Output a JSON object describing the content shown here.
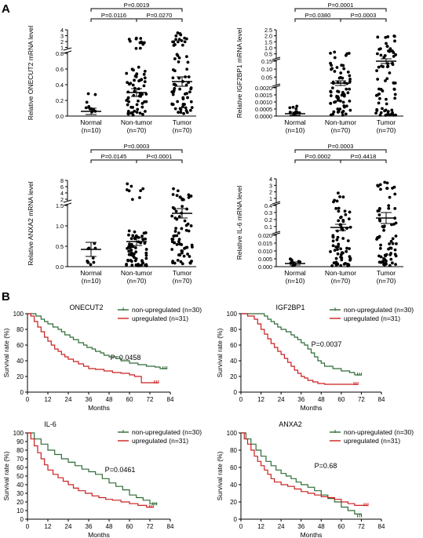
{
  "panels": {
    "a": "A",
    "b": "B"
  },
  "chart_data": [
    {
      "id": "oncecut2_expr",
      "type": "scatter",
      "ylabel": "Relative ONECUT2 mRNA level",
      "categories": [
        "Normal",
        "Non-tumor",
        "Tumor"
      ],
      "counts": [
        "(n=10)",
        "(n=70)",
        "(n=70)"
      ],
      "yticks_top": [
        "0",
        "1",
        "2",
        "3",
        "4"
      ],
      "yticks_bottom": [
        "0.0",
        "0.2",
        "0.4",
        "0.6",
        "0.8"
      ],
      "means": [
        0.06,
        0.3,
        0.44
      ],
      "pvalues": [
        {
          "pair": [
            0,
            1
          ],
          "level": 1,
          "text": "P=0.0116"
        },
        {
          "pair": [
            1,
            2
          ],
          "level": 1,
          "text": "P=0.0270"
        },
        {
          "pair": [
            0,
            2
          ],
          "level": 2,
          "text": "P=0.0019"
        }
      ]
    },
    {
      "id": "igf2bp1_expr",
      "type": "scatter",
      "ylabel": "Relative IGF2BP1 mRNA level",
      "categories": [
        "Normal",
        "Non-tumor",
        "Tumor"
      ],
      "counts": [
        "(n=10)",
        "(n=70)",
        "(n=70)"
      ],
      "yticks_top": [
        "0.5",
        "1.0",
        "1.5",
        "2.0",
        "2.5"
      ],
      "yticks_mid": [
        "0.05",
        "0.10",
        "0.15"
      ],
      "yticks_bottom": [
        "0.0000",
        "0.0005",
        "0.0010",
        "0.0015",
        "0.0020"
      ],
      "means": [
        0.0003,
        0.06,
        0.3
      ],
      "pvalues": [
        {
          "pair": [
            0,
            1
          ],
          "level": 1,
          "text": "P=0.0380"
        },
        {
          "pair": [
            1,
            2
          ],
          "level": 1,
          "text": "P=0.0003"
        },
        {
          "pair": [
            0,
            2
          ],
          "level": 2,
          "text": "P=0.0001"
        }
      ]
    },
    {
      "id": "anxa2_expr",
      "type": "scatter",
      "ylabel": "Relative ANXA2 mRNA level",
      "categories": [
        "Normal",
        "Non-tumor",
        "Tumor"
      ],
      "counts": [
        "(n=10)",
        "(n=70)",
        "(n=70)"
      ],
      "yticks_top": [
        "2",
        "4",
        "6",
        "8"
      ],
      "yticks_bottom": [
        "0.0",
        "0.5",
        "1.0",
        "1.5"
      ],
      "means": [
        0.42,
        0.62,
        1.33
      ],
      "pvalues": [
        {
          "pair": [
            0,
            1
          ],
          "level": 1,
          "text": "P=0.0145"
        },
        {
          "pair": [
            1,
            2
          ],
          "level": 1,
          "text": "P<0.0001"
        },
        {
          "pair": [
            0,
            2
          ],
          "level": 2,
          "text": "P=0.0003"
        }
      ]
    },
    {
      "id": "il6_expr",
      "type": "scatter",
      "ylabel": "Relative IL-6 mRNA level",
      "categories": [
        "Normal",
        "Non-tumor",
        "Tumor"
      ],
      "counts": [
        "(n=10)",
        "(n=70)",
        "(n=70)"
      ],
      "yticks_top": [
        "1",
        "2",
        "3",
        "4"
      ],
      "yticks_mid": [
        "0.1",
        "0.2",
        "0.3",
        "0.4"
      ],
      "yticks_bottom": [
        "0.000",
        "0.005",
        "0.010",
        "0.015",
        "0.020"
      ],
      "means": [
        0.003,
        0.13,
        0.23
      ],
      "pvalues": [
        {
          "pair": [
            0,
            1
          ],
          "level": 1,
          "text": "P=0.0002"
        },
        {
          "pair": [
            1,
            2
          ],
          "level": 1,
          "text": "P=0.4418"
        },
        {
          "pair": [
            0,
            2
          ],
          "level": 2,
          "text": "P=0.0003"
        }
      ]
    },
    {
      "id": "km_oncecut2",
      "type": "line",
      "title": "ONECUT2",
      "xlabel": "Months",
      "ylabel": "Survival rate (%)",
      "xticks": [
        0,
        12,
        24,
        36,
        48,
        60,
        72,
        84
      ],
      "yticks": [
        0,
        20,
        40,
        60,
        80,
        100
      ],
      "xlim": [
        0,
        84
      ],
      "ylim": [
        0,
        100
      ],
      "pvalue": "P=0.0458",
      "series": [
        {
          "name": "non-upregulated (n=30)",
          "color": "#2e6b36",
          "x": [
            0,
            5,
            8,
            10,
            12,
            15,
            18,
            20,
            22,
            25,
            27,
            30,
            33,
            35,
            38,
            40,
            43,
            45,
            48,
            52,
            55,
            60,
            65,
            70,
            75,
            78,
            82
          ],
          "y": [
            100,
            97,
            93,
            90,
            87,
            83,
            80,
            77,
            73,
            70,
            67,
            63,
            60,
            57,
            55,
            52,
            50,
            47,
            45,
            43,
            40,
            37,
            35,
            33,
            32,
            30,
            30
          ]
        },
        {
          "name": "upregulated (n=31)",
          "color": "#cc1f1f",
          "x": [
            0,
            2,
            4,
            6,
            8,
            10,
            12,
            14,
            16,
            18,
            20,
            22,
            24,
            27,
            30,
            33,
            36,
            40,
            45,
            50,
            55,
            60,
            63,
            67,
            72,
            75,
            77
          ],
          "y": [
            100,
            97,
            90,
            83,
            77,
            70,
            65,
            60,
            55,
            52,
            48,
            45,
            42,
            39,
            36,
            33,
            30,
            29,
            27,
            25,
            24,
            22,
            20,
            12,
            12,
            12,
            12
          ]
        }
      ]
    },
    {
      "id": "km_igf2bp1",
      "type": "line",
      "title": "IGF2BP1",
      "xlabel": "Months",
      "ylabel": "Survival rate (%)",
      "xticks": [
        0,
        12,
        24,
        36,
        48,
        60,
        72,
        84
      ],
      "yticks": [
        0,
        20,
        40,
        60,
        80,
        100
      ],
      "xlim": [
        0,
        84
      ],
      "ylim": [
        0,
        100
      ],
      "pvalue": "P=0.0037",
      "series": [
        {
          "name": "non-upregulated (n=30)",
          "color": "#2e6b36",
          "x": [
            0,
            5,
            10,
            14,
            16,
            18,
            20,
            22,
            24,
            27,
            30,
            32,
            34,
            36,
            38,
            40,
            42,
            44,
            46,
            48,
            50,
            55,
            60,
            65,
            68,
            70,
            72
          ],
          "y": [
            100,
            100,
            100,
            97,
            93,
            90,
            87,
            83,
            80,
            77,
            73,
            70,
            67,
            63,
            60,
            55,
            50,
            45,
            40,
            37,
            33,
            30,
            27,
            25,
            22,
            22,
            22
          ]
        },
        {
          "name": "upregulated (n=31)",
          "color": "#cc1f1f",
          "x": [
            0,
            4,
            8,
            10,
            12,
            14,
            16,
            18,
            20,
            22,
            24,
            26,
            28,
            30,
            32,
            34,
            36,
            38,
            40,
            43,
            46,
            50,
            55,
            60,
            65,
            70
          ],
          "y": [
            100,
            97,
            93,
            87,
            80,
            74,
            68,
            62,
            57,
            52,
            48,
            43,
            38,
            33,
            28,
            24,
            20,
            18,
            15,
            13,
            11,
            10,
            10,
            10,
            10,
            10
          ]
        }
      ]
    },
    {
      "id": "km_il6",
      "type": "line",
      "title": "IL-6",
      "xlabel": "Months",
      "ylabel": "Survival rate (%)",
      "xticks": [
        0,
        12,
        24,
        36,
        48,
        60,
        72,
        84
      ],
      "yticks": [
        0,
        10,
        20,
        30,
        40,
        50,
        60,
        70,
        80,
        90,
        100
      ],
      "xlim": [
        0,
        84
      ],
      "ylim": [
        0,
        100
      ],
      "pvalue": "P=0.0461",
      "series": [
        {
          "name": "non-upregulated (n=30)",
          "color": "#2e6b36",
          "x": [
            0,
            4,
            8,
            12,
            16,
            20,
            24,
            28,
            32,
            36,
            40,
            44,
            48,
            52,
            56,
            60,
            64,
            68,
            72,
            76
          ],
          "y": [
            100,
            93,
            87,
            80,
            75,
            70,
            66,
            62,
            58,
            55,
            52,
            47,
            42,
            38,
            34,
            28,
            25,
            22,
            18,
            17
          ]
        },
        {
          "name": "upregulated (n=31)",
          "color": "#cc1f1f",
          "x": [
            0,
            2,
            4,
            6,
            8,
            10,
            12,
            15,
            18,
            21,
            24,
            27,
            30,
            34,
            38,
            42,
            46,
            50,
            55,
            60,
            65,
            70,
            74
          ],
          "y": [
            100,
            93,
            85,
            77,
            70,
            63,
            57,
            52,
            48,
            44,
            40,
            36,
            33,
            30,
            27,
            25,
            23,
            22,
            20,
            18,
            16,
            14,
            14
          ]
        }
      ]
    },
    {
      "id": "km_anxa2",
      "type": "line",
      "title": "ANXA2",
      "xlabel": "Months",
      "ylabel": "Survival rate (%)",
      "xticks": [
        0,
        12,
        24,
        36,
        48,
        60,
        72,
        84
      ],
      "yticks": [
        0,
        20,
        40,
        60,
        80,
        100
      ],
      "xlim": [
        0,
        84
      ],
      "ylim": [
        0,
        100
      ],
      "pvalue": "P=0.68",
      "series": [
        {
          "name": "non-upregulated (n=30)",
          "color": "#2e6b36",
          "x": [
            0,
            3,
            6,
            9,
            12,
            15,
            18,
            21,
            24,
            27,
            30,
            33,
            36,
            40,
            44,
            48,
            52,
            56,
            60,
            64,
            68,
            72
          ],
          "y": [
            100,
            93,
            87,
            80,
            73,
            67,
            62,
            57,
            53,
            50,
            47,
            43,
            40,
            37,
            33,
            28,
            24,
            20,
            14,
            10,
            6,
            3
          ]
        },
        {
          "name": "upregulated (n=31)",
          "color": "#cc1f1f",
          "x": [
            0,
            2,
            4,
            6,
            8,
            10,
            12,
            14,
            16,
            18,
            20,
            24,
            28,
            32,
            36,
            40,
            44,
            48,
            52,
            56,
            60,
            64,
            68,
            72,
            76
          ],
          "y": [
            100,
            93,
            87,
            80,
            73,
            67,
            62,
            57,
            52,
            47,
            43,
            40,
            38,
            35,
            32,
            30,
            28,
            26,
            25,
            23,
            20,
            18,
            16,
            16,
            16
          ]
        }
      ]
    }
  ]
}
